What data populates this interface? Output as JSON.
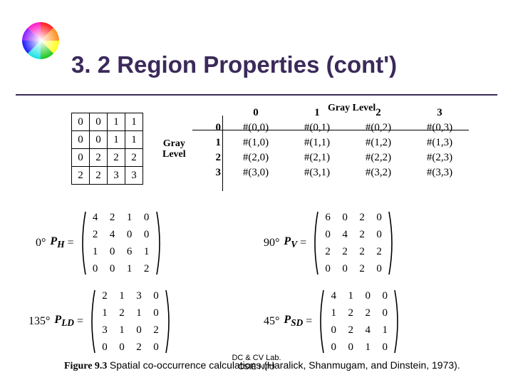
{
  "title": "3. 2 Region Properties (cont')",
  "title_color": "#3b2a5a",
  "source_matrix": {
    "rows": [
      [
        "0",
        "0",
        "1",
        "1"
      ],
      [
        "0",
        "0",
        "1",
        "1"
      ],
      [
        "0",
        "2",
        "2",
        "2"
      ],
      [
        "2",
        "2",
        "3",
        "3"
      ]
    ]
  },
  "glcm": {
    "top_label": "Gray Level",
    "side_label_l1": "Gray",
    "side_label_l2": "Level",
    "col_headers": [
      "0",
      "1",
      "2",
      "3"
    ],
    "row_headers": [
      "0",
      "1",
      "2",
      "3"
    ],
    "cells": [
      [
        "#(0,0)",
        "#(0,1)",
        "#(0,2)",
        "#(0,3)"
      ],
      [
        "#(1,0)",
        "#(1,1)",
        "#(1,2)",
        "#(1,3)"
      ],
      [
        "#(2,0)",
        "#(2,1)",
        "#(2,2)",
        "#(2,3)"
      ],
      [
        "#(3,0)",
        "#(3,1)",
        "#(3,2)",
        "#(3,3)"
      ]
    ]
  },
  "matrices": {
    "ph": {
      "angle": "0°",
      "name_html": "P<sub>H</sub>",
      "rows": [
        [
          "4",
          "2",
          "1",
          "0"
        ],
        [
          "2",
          "4",
          "0",
          "0"
        ],
        [
          "1",
          "0",
          "6",
          "1"
        ],
        [
          "0",
          "0",
          "1",
          "2"
        ]
      ]
    },
    "pv": {
      "angle": "90°",
      "name_html": "P<sub>V</sub>",
      "rows": [
        [
          "6",
          "0",
          "2",
          "0"
        ],
        [
          "0",
          "4",
          "2",
          "0"
        ],
        [
          "2",
          "2",
          "2",
          "2"
        ],
        [
          "0",
          "0",
          "2",
          "0"
        ]
      ]
    },
    "pld": {
      "angle": "135°",
      "name_html": "P<sub>LD</sub>",
      "rows": [
        [
          "2",
          "1",
          "3",
          "0"
        ],
        [
          "1",
          "2",
          "1",
          "0"
        ],
        [
          "3",
          "1",
          "0",
          "2"
        ],
        [
          "0",
          "0",
          "2",
          "0"
        ]
      ]
    },
    "psd": {
      "angle": "45°",
      "name_html": "P<sub>SD</sub>",
      "rows": [
        [
          "4",
          "1",
          "0",
          "0"
        ],
        [
          "1",
          "2",
          "2",
          "0"
        ],
        [
          "0",
          "2",
          "4",
          "1"
        ],
        [
          "0",
          "0",
          "1",
          "0"
        ]
      ]
    }
  },
  "caption": {
    "fig_label": "Figure 9.3",
    "text": "Spatial co-occurrence calculations (Haralick, Shanmugam, and Dinstein, 1973)."
  },
  "footer": {
    "l1": "DC & CV Lab.",
    "l2": "CSIE NTU"
  },
  "logo_colors": {
    "red": "#ff0000",
    "orange": "#ff8000",
    "yellow": "#ffff00",
    "green": "#00c000",
    "cyan": "#00dede",
    "blue": "#0000ff",
    "purple": "#8000ff",
    "magenta": "#ff00c0",
    "white": "#ffffff"
  }
}
